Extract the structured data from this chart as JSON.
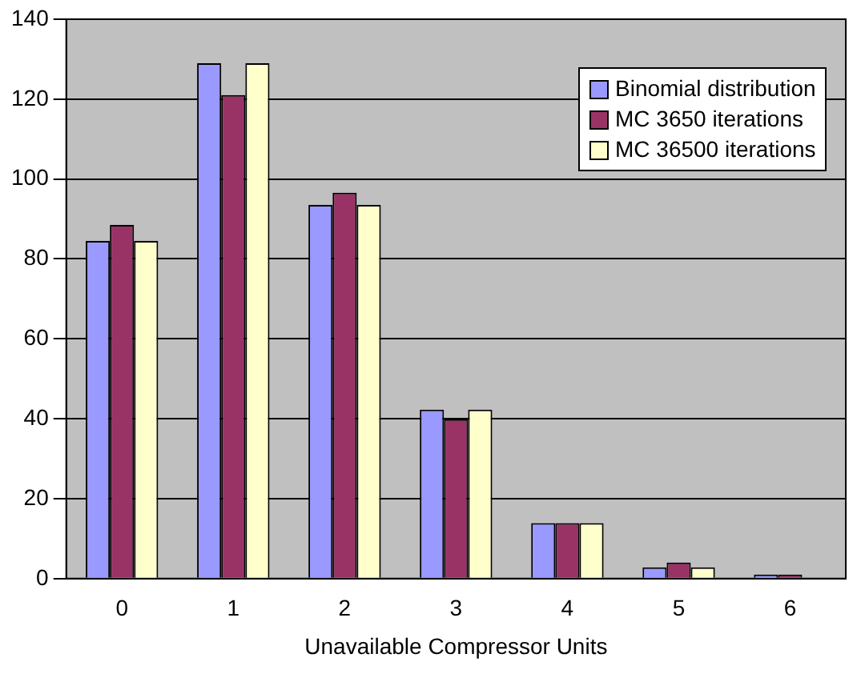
{
  "chart_data": {
    "type": "bar",
    "xlabel": "Unavailable Compressor Units",
    "categories": [
      "0",
      "1",
      "2",
      "3",
      "4",
      "5",
      "6"
    ],
    "series": [
      {
        "name": "Binomial distribution",
        "color": "#9999ff",
        "values": [
          84.5,
          129,
          93.5,
          42.3,
          13.9,
          2.8,
          1
        ]
      },
      {
        "name": "MC 3650 iterations",
        "color": "#993366",
        "values": [
          88.5,
          121,
          96.6,
          39.9,
          13.9,
          4,
          1
        ]
      },
      {
        "name": "MC 36500 iterations",
        "color": "#ffffcc",
        "values": [
          84.5,
          129,
          93.5,
          42.3,
          13.9,
          2.8,
          0.2
        ]
      }
    ],
    "ylim": [
      0,
      140
    ],
    "yticks": [
      0,
      20,
      40,
      60,
      80,
      100,
      120,
      140
    ],
    "grid": "y",
    "legend": "top right"
  }
}
